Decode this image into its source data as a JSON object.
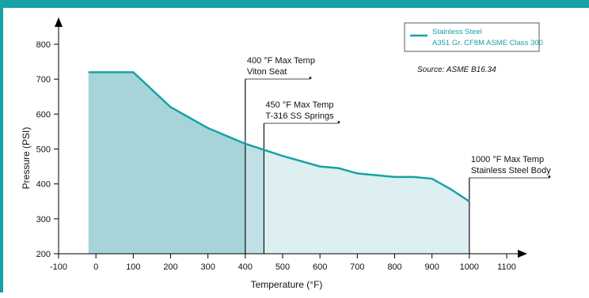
{
  "chart_data": {
    "type": "area",
    "xlabel": "Temperature (°F)",
    "ylabel": "Pressure (PSI)",
    "xlim": [
      -100,
      1100
    ],
    "ylim": [
      200,
      800
    ],
    "x_ticks": [
      -100,
      0,
      100,
      200,
      300,
      400,
      500,
      600,
      700,
      800,
      900,
      1000,
      1100
    ],
    "y_ticks": [
      200,
      300,
      400,
      500,
      600,
      700,
      800
    ],
    "series": [
      {
        "name_lines": [
          "Stainless Steel",
          "A351 Gr. CF8M ASME Class 300"
        ],
        "color": "#17a2a4",
        "x": [
          -20,
          100,
          200,
          300,
          400,
          500,
          600,
          650,
          700,
          800,
          850,
          900,
          950,
          1000
        ],
        "y": [
          720,
          720,
          620,
          560,
          515,
          480,
          450,
          445,
          430,
          420,
          420,
          415,
          385,
          350
        ]
      }
    ],
    "annotations": [
      {
        "lines": [
          "400 °F Max Temp",
          "Viton Seat"
        ],
        "x": 400
      },
      {
        "lines": [
          "450 °F Max Temp",
          "T-316 SS Springs"
        ],
        "x": 450
      },
      {
        "lines": [
          "1000 °F Max Temp",
          "Stainless Steel Body"
        ],
        "x": 1000
      }
    ],
    "source": "Source: ASME  B16.34",
    "fill_colors": {
      "dark": "#a7d4d9",
      "mid": "#bfe0e4",
      "light": "#ddeff1"
    },
    "accent_color": "#17a2a4"
  }
}
